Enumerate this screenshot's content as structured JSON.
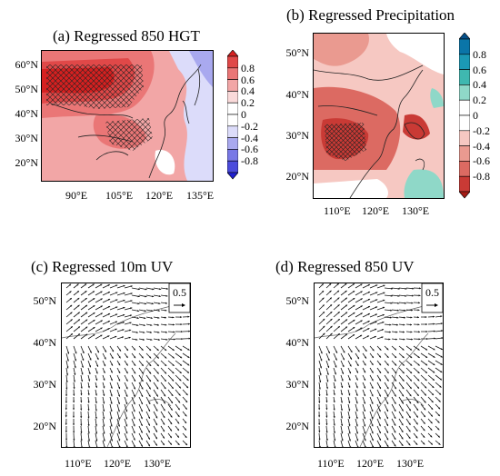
{
  "panels": {
    "a": {
      "title": "(a) Regressed 850 HGT",
      "yticks": [
        "60°N",
        "50°N",
        "40°N",
        "30°N",
        "20°N"
      ],
      "xticks": [
        "90°E",
        "105°E",
        "120°E",
        "135°E"
      ]
    },
    "b": {
      "title": "(b) Regressed Precipitation",
      "yticks": [
        "50°N",
        "40°N",
        "30°N",
        "20°N"
      ],
      "xticks": [
        "110°E",
        "120°E",
        "130°E"
      ]
    },
    "c": {
      "title": "(c) Regressed 10m UV",
      "yticks": [
        "50°N",
        "40°N",
        "30°N",
        "20°N"
      ],
      "xticks": [
        "110°E",
        "120°E",
        "130°E"
      ],
      "ref_vector": "0.5"
    },
    "d": {
      "title": "(d) Regressed 850 UV",
      "yticks": [
        "50°N",
        "40°N",
        "30°N",
        "20°N"
      ],
      "xticks": [
        "110°E",
        "120°E",
        "130°E"
      ],
      "ref_vector": "0.5"
    }
  },
  "colorbar_a": {
    "labels": [
      "0.8",
      "0.6",
      "0.4",
      "0.2",
      "0",
      "-0.2",
      "-0.4",
      "-0.6",
      "-0.8"
    ],
    "colors": [
      "#d52020",
      "#e04848",
      "#ea7676",
      "#f2a6a6",
      "#fadada",
      "#ffffff",
      "#ffffff",
      "#dcdcfa",
      "#a9a9ef",
      "#7878e6",
      "#4b4bdc",
      "#2020d0"
    ]
  },
  "colorbar_b": {
    "labels": [
      "0.8",
      "0.6",
      "0.4",
      "0.2",
      "0",
      "-0.2",
      "-0.4",
      "-0.6",
      "-0.8"
    ],
    "colors": [
      "#05508a",
      "#0a75a8",
      "#1b99b5",
      "#3fb8b0",
      "#8fd8c8",
      "#ffffff",
      "#ffffff",
      "#f6c8c2",
      "#ea9a90",
      "#dc6a62",
      "#c93a35",
      "#a51c16"
    ]
  }
}
